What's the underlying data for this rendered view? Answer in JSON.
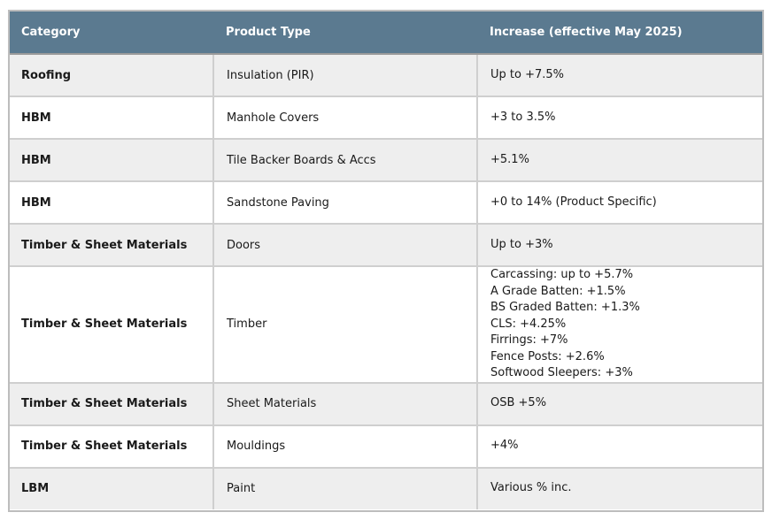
{
  "table": {
    "headers": [
      "Category",
      "Product Type",
      "Increase (effective May 2025)"
    ],
    "rows": [
      {
        "category": "Roofing",
        "product": "Insulation  (PIR)",
        "increase": [
          "Up to +7.5%"
        ]
      },
      {
        "category": "HBM",
        "product": "Manhole Covers",
        "increase": [
          "+3 to 3.5%"
        ]
      },
      {
        "category": "HBM",
        "product": "Tile Backer Boards & Accs",
        "increase": [
          "+5.1%"
        ]
      },
      {
        "category": "HBM",
        "product": "Sandstone Paving",
        "increase": [
          "+0 to 14% (Product Specific)"
        ]
      },
      {
        "category": "Timber & Sheet Materials",
        "product": "Doors",
        "increase": [
          "Up to +3%"
        ]
      },
      {
        "category": "Timber & Sheet Materials",
        "product": "Timber",
        "increase": [
          "Carcassing: up to +5.7%",
          "A Grade Batten: +1.5%",
          "BS Graded Batten: +1.3%",
          "CLS: +4.25%",
          "Firrings: +7%",
          "Fence Posts: +2.6%",
          "Softwood Sleepers: +3%"
        ]
      },
      {
        "category": "Timber & Sheet Materials",
        "product": "Sheet Materials",
        "increase": [
          "OSB +5%"
        ]
      },
      {
        "category": "Timber & Sheet Materials",
        "product": "Mouldings",
        "increase": [
          "+4%"
        ]
      },
      {
        "category": "LBM",
        "product": "Paint",
        "increase": [
          "Various % inc."
        ]
      }
    ]
  }
}
